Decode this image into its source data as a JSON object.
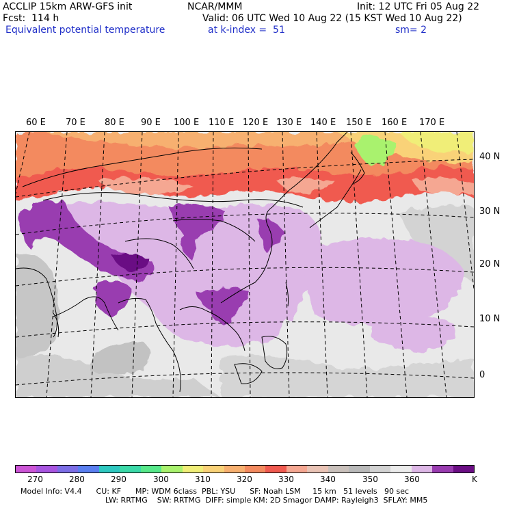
{
  "header": {
    "model": "ACCLIP 15km ARW-GFS init",
    "forecast": "Fcst:  114 h",
    "field": "Equivalent potential temperature",
    "org": "NCAR/MMM",
    "valid": "Valid: 06 UTC Wed 10 Aug 22 (15 KST Wed 10 Aug 22)",
    "level": "at k-index =  51",
    "init": "Init: 12 UTC Fri 05 Aug 22",
    "smoothing": "sm= 2"
  },
  "map": {
    "lon_labels": [
      "60 E",
      "70 E",
      "80 E",
      "90 E",
      "100 E",
      "110 E",
      "120 E",
      "130 E",
      "140 E",
      "150 E",
      "160 E",
      "170 E"
    ],
    "lat_labels": [
      "40 N",
      "30 N",
      "20 N",
      "10 N",
      "0"
    ]
  },
  "colorbar": {
    "colors": [
      "#cc55d6",
      "#a855e0",
      "#7c6ee6",
      "#5a7ff0",
      "#2ec8c0",
      "#3bd9a8",
      "#57e88a",
      "#a9f26e",
      "#f0ee78",
      "#f9d278",
      "#f7b070",
      "#f38a5f",
      "#f05a50",
      "#f5a792",
      "#e9c3b5",
      "#c9c0bb",
      "#b9b9b9",
      "#d2d2d2",
      "#ebebeb",
      "#ddb7e6",
      "#993cb0",
      "#6b0e84"
    ],
    "tick_labels": [
      "270",
      "280",
      "290",
      "300",
      "310",
      "320",
      "330",
      "340",
      "350",
      "360"
    ],
    "unit": "K"
  },
  "footer": {
    "line1": "Model Info: V4.4      CU: KF      MP: WDM 6class  PBL: YSU      SF: Noah LSM     15 km   51 levels   90 sec",
    "line2": "LW: RRTMG    SW: RRTMG  DIFF: simple KM: 2D Smagor DAMP: Rayleigh3  SFLAY: MM5"
  }
}
